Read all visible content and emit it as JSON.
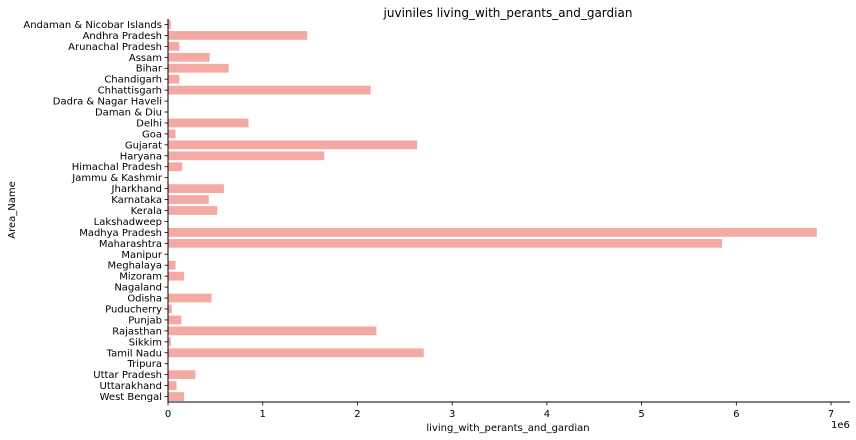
{
  "chart_data": {
    "type": "bar",
    "orientation": "horizontal",
    "title": "juviniles living_with_perants_and_gardian",
    "xlabel": "living_with_perants_and_gardian",
    "ylabel": "Area_Name",
    "x_scale_label": "1e6",
    "xlim": [
      0,
      7.2
    ],
    "x_ticks": [
      "0",
      "1",
      "2",
      "3",
      "4",
      "5",
      "6",
      "7"
    ],
    "bar_color": "#f4a9a4",
    "grid": false,
    "categories": [
      "Andaman & Nicobar Islands",
      "Andhra Pradesh",
      "Arunachal Pradesh",
      "Assam",
      "Bihar",
      "Chandigarh",
      "Chhattisgarh",
      "Dadra & Nagar Haveli",
      "Daman & Diu",
      "Delhi",
      "Goa",
      "Gujarat",
      "Haryana",
      "Himachal Pradesh",
      "Jammu & Kashmir",
      "Jharkhand",
      "Karnataka",
      "Kerala",
      "Lakshadweep",
      "Madhya Pradesh",
      "Maharashtra",
      "Manipur",
      "Meghalaya",
      "Mizoram",
      "Nagaland",
      "Odisha",
      "Puducherry",
      "Punjab",
      "Rajasthan",
      "Sikkim",
      "Tamil Nadu",
      "Tripura",
      "Uttar Pradesh",
      "Uttarakhand",
      "West Bengal"
    ],
    "values": [
      0.03,
      1.47,
      0.12,
      0.44,
      0.64,
      0.12,
      2.14,
      0.0,
      0.0,
      0.85,
      0.08,
      2.63,
      1.65,
      0.15,
      0.0,
      0.59,
      0.43,
      0.52,
      0.0,
      6.85,
      5.85,
      0.0,
      0.08,
      0.17,
      0.0,
      0.46,
      0.04,
      0.14,
      2.2,
      0.03,
      2.7,
      0.0,
      0.29,
      0.09,
      0.17
    ]
  }
}
